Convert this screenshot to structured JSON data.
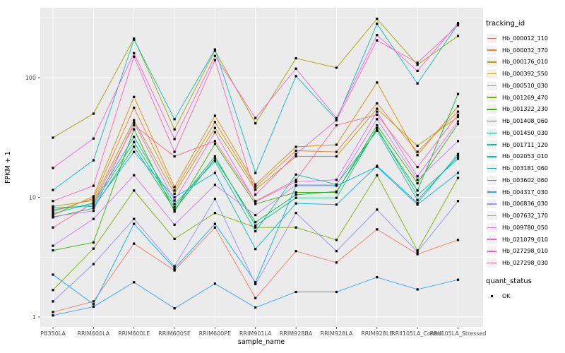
{
  "figure": {
    "bg": "#FFFFFF",
    "panel_bg": "#EBEBEB",
    "grid_color": "#FFFFFF",
    "axis_text_color": "#4D4D4D",
    "axis_title_color": "#000000",
    "point_color": "#000000",
    "legend_key_bg": "#F2F2F2"
  },
  "chart_data": {
    "type": "line",
    "title": "",
    "xlabel": "sample_name",
    "ylabel": "FPKM + 1",
    "y_scale": "log10",
    "y_tick_labels": [
      "1",
      "10",
      "100"
    ],
    "y_tick_values": [
      1,
      10,
      100
    ],
    "y_minor_tick_values": [
      3.1623,
      31.623,
      316.23
    ],
    "ylim": [
      1,
      340
    ],
    "grid": true,
    "legend_position": "right",
    "legend_title": "tracking_id",
    "quant_legend_title": "quant_status",
    "quant_legend_items": [
      "OK"
    ],
    "point_marker": "black-square",
    "categories": [
      "PB350LA",
      "RRIM600LA",
      "RRIM600LE",
      "RRIM600SE",
      "RRIM600PE",
      "RRIM901LA",
      "RRIM928BA",
      "RRIM928LA",
      "RRIM928LE",
      "RRII105LA_Control",
      "RRII105LA_Stressed"
    ],
    "series": [
      {
        "name": "Hb_000012_110",
        "color": "#F8766D",
        "quant_status": "OK",
        "values": [
          1.1,
          1.35,
          4.1,
          2.45,
          5.6,
          1.44,
          3.55,
          2.85,
          5.4,
          3.35,
          4.4
        ]
      },
      {
        "name": "Hb_000032_370",
        "color": "#EA8331",
        "quant_status": "OK",
        "values": [
          7.6,
          9.8,
          56,
          11.4,
          42.5,
          12.2,
          24.5,
          24,
          61,
          24,
          52
        ]
      },
      {
        "name": "Hb_000176_010",
        "color": "#D89000",
        "quant_status": "OK",
        "values": [
          7.1,
          10.2,
          69,
          12.2,
          48,
          12.8,
          26.4,
          27.5,
          91,
          22.5,
          57.5
        ]
      },
      {
        "name": "Hb_000392_550",
        "color": "#C09B00",
        "quant_status": "OK",
        "values": [
          8.4,
          9.4,
          44,
          10.7,
          38,
          11.6,
          22,
          22,
          55,
          27,
          47
        ]
      },
      {
        "name": "Hb_000510_030",
        "color": "#A3A500",
        "quant_status": "OK",
        "values": [
          31.5,
          50,
          212,
          37,
          168,
          41.5,
          145,
          121,
          310,
          128,
          223
        ]
      },
      {
        "name": "Hb_001269_470",
        "color": "#7CAE00",
        "quant_status": "OK",
        "values": [
          1.68,
          3.73,
          11.4,
          4.5,
          7.4,
          5.6,
          5.6,
          4.4,
          15.3,
          3.6,
          14.5
        ]
      },
      {
        "name": "Hb_001322_230",
        "color": "#39B600",
        "quant_status": "OK",
        "values": [
          3.6,
          4.2,
          37,
          7.6,
          28,
          8.8,
          11,
          11,
          40,
          13.1,
          41
        ]
      },
      {
        "name": "Hb_001408_060",
        "color": "#00BB4E",
        "quant_status": "OK",
        "values": [
          6.8,
          8.1,
          26.5,
          7.9,
          21,
          6.2,
          10.5,
          11.2,
          37,
          11.4,
          73
        ]
      },
      {
        "name": "Hb_001450_030",
        "color": "#00BF7D",
        "quant_status": "OK",
        "values": [
          7.9,
          8.7,
          29,
          8.3,
          22,
          5.8,
          9.9,
          9.9,
          38,
          10.4,
          21
        ]
      },
      {
        "name": "Hb_001711_120",
        "color": "#00C1A3",
        "quant_status": "OK",
        "values": [
          7.3,
          9.0,
          32,
          8.8,
          20,
          5.2,
          15.5,
          12.8,
          36,
          9.5,
          22
        ]
      },
      {
        "name": "Hb_002053_010",
        "color": "#00BFC4",
        "quant_status": "OK",
        "values": [
          11.5,
          20.4,
          208,
          45,
          172,
          16,
          103,
          44.5,
          282,
          89.5,
          280
        ]
      },
      {
        "name": "Hb_003181_060",
        "color": "#00BAE0",
        "quant_status": "OK",
        "values": [
          8.2,
          8.4,
          24,
          10,
          16,
          3.7,
          8.9,
          8.7,
          18.3,
          9.0,
          23
        ]
      },
      {
        "name": "Hb_003602_060",
        "color": "#00B0F6",
        "quant_status": "OK",
        "values": [
          2.26,
          1.28,
          6.0,
          2.55,
          6.0,
          1.95,
          12.5,
          12.5,
          18,
          8.7,
          16
        ]
      },
      {
        "name": "Hb_004317_030",
        "color": "#35A2FF",
        "quant_status": "OK",
        "values": [
          1.03,
          1.22,
          1.95,
          1.18,
          1.9,
          1.2,
          1.62,
          1.62,
          2.15,
          1.7,
          2.05
        ]
      },
      {
        "name": "Hb_006836_030",
        "color": "#9590FF",
        "quant_status": "OK",
        "values": [
          1.35,
          2.77,
          6.6,
          2.66,
          9.7,
          1.88,
          7.4,
          3.55,
          7.9,
          3.5,
          9.3
        ]
      },
      {
        "name": "Hb_007632_170",
        "color": "#C77CFF",
        "quant_status": "OK",
        "values": [
          3.94,
          6.6,
          15.3,
          5.9,
          12.7,
          7.1,
          12.7,
          12.7,
          45,
          14,
          29.5
        ]
      },
      {
        "name": "Hb_009780_050",
        "color": "#E76BF3",
        "quant_status": "OK",
        "values": [
          6.9,
          7.7,
          42,
          9.4,
          35,
          9.2,
          13.5,
          14,
          52,
          15,
          43
        ]
      },
      {
        "name": "Hb_021079_010",
        "color": "#FA62DB",
        "quant_status": "OK",
        "values": [
          17.6,
          31,
          160,
          30.7,
          152,
          46,
          119,
          46,
          227,
          114,
          286
        ]
      },
      {
        "name": "Hb_027298_010",
        "color": "#FF62BC",
        "quant_status": "OK",
        "values": [
          9.3,
          12.5,
          150,
          24,
          140,
          10.5,
          23,
          44,
          205,
          133,
          274
        ]
      },
      {
        "name": "Hb_027298_030",
        "color": "#FF6A98",
        "quant_status": "OK",
        "values": [
          5.6,
          9.0,
          40,
          22,
          29.5,
          9.3,
          14,
          40,
          49,
          17.9,
          49
        ]
      }
    ]
  }
}
